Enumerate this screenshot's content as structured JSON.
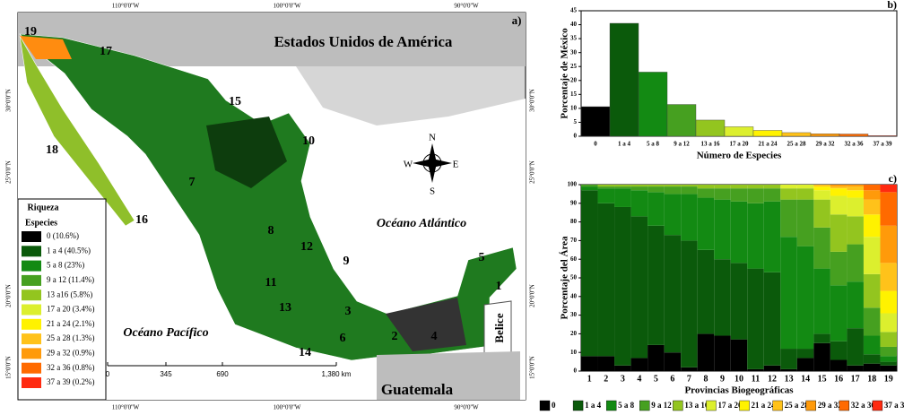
{
  "map": {
    "panel_label": "a)",
    "country_label": "Estados Unidos de América",
    "atlantic": "Océano Atlántico",
    "pacific": "Océano Pacífico",
    "belize": "Belice",
    "guatemala": "Guatemala",
    "lon_labels": [
      "110°0'0''W",
      "100°0'0''W",
      "90°0'0''W"
    ],
    "lat_labels": [
      "30°0'0''N",
      "25°0'0''N",
      "20°0'0''N",
      "15°0'0''N"
    ],
    "scale_labels": [
      "0",
      "345",
      "690",
      "1,380 km"
    ],
    "compass": [
      "N",
      "S",
      "E",
      "W"
    ],
    "provinces": [
      "19",
      "17",
      "15",
      "10",
      "7",
      "18",
      "16",
      "8",
      "12",
      "9",
      "5",
      "1",
      "11",
      "13",
      "3",
      "6",
      "2",
      "4",
      "14"
    ],
    "legend": {
      "title": "Riqueza",
      "subtitle": "Especies",
      "items": [
        {
          "label": "0 (10.6%)",
          "color": "#000000"
        },
        {
          "label": "1 a 4 (40.5%)",
          "color": "#0b5a0b"
        },
        {
          "label": "5 a 8 (23%)",
          "color": "#138a13"
        },
        {
          "label": "9 a 12 (11.4%)",
          "color": "#46a020"
        },
        {
          "label": "13 a16 (5.8%)",
          "color": "#93c51f"
        },
        {
          "label": "17 a 20 (3.4%)",
          "color": "#dcef2e"
        },
        {
          "label": "21 a 24 (2.1%)",
          "color": "#fff200"
        },
        {
          "label": "25 a 28 (1.3%)",
          "color": "#ffc21a"
        },
        {
          "label": "29 a 32 (0.9%)",
          "color": "#ff9a0a"
        },
        {
          "label": "32 a 36 (0.8%)",
          "color": "#ff6a00"
        },
        {
          "label": "37 a 39 (0.2%)",
          "color": "#ff2a10"
        }
      ]
    }
  },
  "chart_data": [
    {
      "type": "bar",
      "panel_label": "b)",
      "x_label": "Número de Especies",
      "y_label": "Porcentaje de México",
      "categories": [
        "0",
        "1 a 4",
        "5 a 8",
        "9 a 12",
        "13 a 16",
        "17 a 20",
        "21 a 24",
        "25 a 28",
        "29 a 32",
        "32 a 36",
        "37 a 39"
      ],
      "values": [
        10.6,
        40.5,
        23,
        11.4,
        5.8,
        3.4,
        2.1,
        1.3,
        0.9,
        0.8,
        0.2
      ],
      "colors": [
        "#000000",
        "#0b5a0b",
        "#138a13",
        "#46a020",
        "#93c51f",
        "#dcef2e",
        "#fff200",
        "#ffc21a",
        "#ff9a0a",
        "#ff6a00",
        "#ff2a10"
      ],
      "ylim": [
        0,
        45
      ],
      "yticks": [
        0,
        5,
        10,
        15,
        20,
        25,
        30,
        35,
        40,
        45
      ]
    },
    {
      "type": "stacked_bar",
      "panel_label": "c)",
      "x_label": "Provincias Biogeográficas",
      "y_label": "Porcentaje del Área",
      "categories": [
        "1",
        "2",
        "3",
        "4",
        "5",
        "6",
        "7",
        "8",
        "9",
        "10",
        "11",
        "12",
        "13",
        "14",
        "15",
        "16",
        "17",
        "18",
        "19"
      ],
      "ylim": [
        0,
        100
      ],
      "yticks": [
        0,
        10,
        20,
        30,
        40,
        50,
        60,
        70,
        80,
        90,
        100
      ],
      "series": [
        {
          "name": "0",
          "color": "#000000",
          "values": [
            8,
            8,
            3,
            7,
            14,
            10,
            2,
            20,
            19,
            17,
            1,
            3,
            1,
            7,
            15,
            6,
            3,
            4,
            3
          ]
        },
        {
          "name": "1 a 4",
          "color": "#0b5a0b",
          "values": [
            89,
            82,
            85,
            76,
            64,
            63,
            68,
            45,
            41,
            41,
            54,
            50,
            11,
            5,
            5,
            10,
            20,
            5,
            2
          ]
        },
        {
          "name": "5 a 8",
          "color": "#138a13",
          "values": [
            2,
            8,
            10,
            14,
            18,
            22,
            25,
            28,
            32,
            33,
            35,
            38,
            60,
            55,
            35,
            30,
            25,
            10,
            3
          ]
        },
        {
          "name": "9 a 12",
          "color": "#46a020",
          "values": [
            1,
            1,
            1,
            2,
            3,
            4,
            4,
            5,
            6,
            7,
            8,
            7,
            20,
            25,
            22,
            18,
            20,
            15,
            5
          ]
        },
        {
          "name": "13 a 16",
          "color": "#93c51f",
          "values": [
            0,
            1,
            1,
            1,
            1,
            1,
            1,
            2,
            2,
            2,
            2,
            2,
            6,
            6,
            15,
            20,
            15,
            18,
            8
          ]
        },
        {
          "name": "17 a 20",
          "color": "#dcef2e",
          "values": [
            0,
            0,
            0,
            0,
            0,
            0,
            0,
            0,
            0,
            0,
            0,
            0,
            2,
            2,
            5,
            10,
            10,
            20,
            10
          ]
        },
        {
          "name": "21 a 24",
          "color": "#fff200",
          "values": [
            0,
            0,
            0,
            0,
            0,
            0,
            0,
            0,
            0,
            0,
            0,
            0,
            0,
            0,
            2,
            4,
            4,
            12,
            12
          ]
        },
        {
          "name": "25 a 28",
          "color": "#ffc21a",
          "values": [
            0,
            0,
            0,
            0,
            0,
            0,
            0,
            0,
            0,
            0,
            0,
            0,
            0,
            0,
            1,
            1,
            2,
            8,
            15
          ]
        },
        {
          "name": "29 a 32",
          "color": "#ff9a0a",
          "values": [
            0,
            0,
            0,
            0,
            0,
            0,
            0,
            0,
            0,
            0,
            0,
            0,
            0,
            0,
            0,
            1,
            1,
            5,
            20
          ]
        },
        {
          "name": "32 a 36",
          "color": "#ff6a00",
          "values": [
            0,
            0,
            0,
            0,
            0,
            0,
            0,
            0,
            0,
            0,
            0,
            0,
            0,
            0,
            0,
            0,
            0,
            3,
            18
          ]
        },
        {
          "name": "37 a 39",
          "color": "#ff2a10",
          "values": [
            0,
            0,
            0,
            0,
            0,
            0,
            0,
            0,
            0,
            0,
            0,
            0,
            0,
            0,
            0,
            0,
            0,
            0,
            4
          ]
        }
      ]
    }
  ]
}
